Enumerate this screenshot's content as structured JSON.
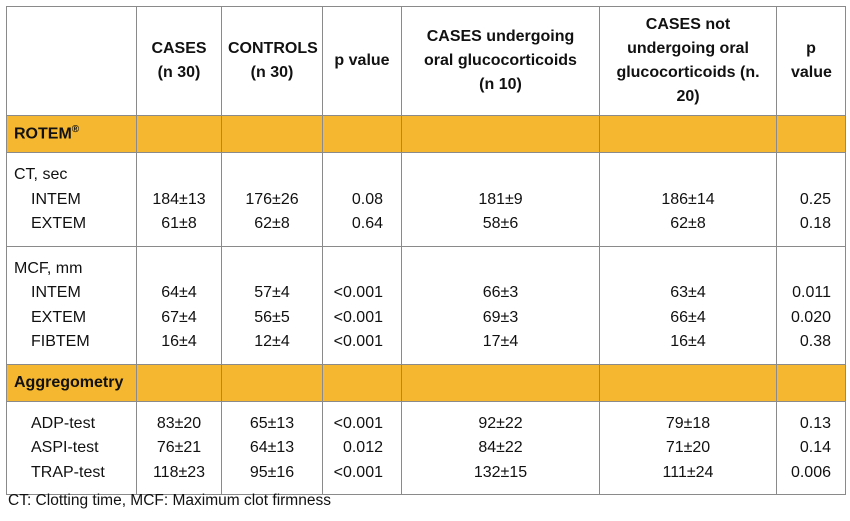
{
  "headers": {
    "cases": "CASES (n 30)",
    "controls": "CONTROLS (n 30)",
    "p_value": "p value",
    "cases_gc": "CASES undergoing oral glucocorticoids (n 10)",
    "cases_no_gc": "CASES not undergoing oral glucocorticoids (n. 20)",
    "p_value_2": "p value"
  },
  "sections": {
    "rotem": "ROTEM",
    "rotem_mark": "®",
    "aggregometry": "Aggregometry"
  },
  "groups": {
    "ct": "CT, sec",
    "mcf": "MCF, mm"
  },
  "ct_rows": [
    {
      "label": "INTEM",
      "cases": "184±13",
      "controls": "176±26",
      "p": "0.08",
      "cases_gc": "181±9",
      "cases_no_gc": "186±14",
      "p2": "0.25"
    },
    {
      "label": "EXTEM",
      "cases": "61±8",
      "controls": "62±8",
      "p": "0.64",
      "cases_gc": "58±6",
      "cases_no_gc": "62±8",
      "p2": "0.18"
    }
  ],
  "mcf_rows": [
    {
      "label": "INTEM",
      "cases": "64±4",
      "controls": "57±4",
      "p": "<0.001",
      "cases_gc": "66±3",
      "cases_no_gc": "63±4",
      "p2": "0.011"
    },
    {
      "label": "EXTEM",
      "cases": "67±4",
      "controls": "56±5",
      "p": "<0.001",
      "cases_gc": "69±3",
      "cases_no_gc": "66±4",
      "p2": "0.020"
    },
    {
      "label": "FIBTEM",
      "cases": "16±4",
      "controls": "12±4",
      "p": "<0.001",
      "cases_gc": "17±4",
      "cases_no_gc": "16±4",
      "p2": "0.38"
    }
  ],
  "aggr_rows": [
    {
      "label": "ADP-test",
      "cases": "83±20",
      "controls": "65±13",
      "p": "<0.001",
      "cases_gc": "92±22",
      "cases_no_gc": "79±18",
      "p2": "0.13"
    },
    {
      "label": "ASPI-test",
      "cases": "76±21",
      "controls": "64±13",
      "p": "0.012",
      "cases_gc": "84±22",
      "cases_no_gc": "71±20",
      "p2": "0.14"
    },
    {
      "label": "TRAP-test",
      "cases": "118±23",
      "controls": "95±16",
      "p": "<0.001",
      "cases_gc": "132±15",
      "cases_no_gc": "111±24",
      "p2": "0.006"
    }
  ],
  "footnote": "CT: Clotting time, MCF: Maximum clot firmness"
}
